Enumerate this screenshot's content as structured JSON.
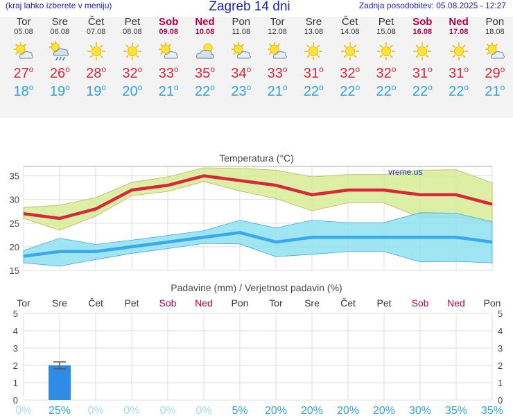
{
  "header": {
    "left_text": "(kraj lahko izberete v meniju)",
    "title": "Zagreb 14 dni",
    "right_text": "Zadnja posodobitev: 05.08.2025 - 12:27"
  },
  "degree_mark": "o",
  "days": [
    {
      "name": "Tor",
      "date": "05.08",
      "weekend": false,
      "icon": "sun-cloud-icon",
      "max": "27",
      "min": "18",
      "max_val": 27,
      "min_val": 18
    },
    {
      "name": "Sre",
      "date": "06.08",
      "weekend": false,
      "icon": "sun-cloud-rain-icon",
      "max": "26",
      "min": "19",
      "max_val": 26,
      "min_val": 19
    },
    {
      "name": "Čet",
      "date": "07.08",
      "weekend": false,
      "icon": "sun-icon",
      "max": "28",
      "min": "19",
      "max_val": 28,
      "min_val": 19
    },
    {
      "name": "Pet",
      "date": "08.08",
      "weekend": false,
      "icon": "sun-icon",
      "max": "32",
      "min": "20",
      "max_val": 32,
      "min_val": 20
    },
    {
      "name": "Sob",
      "date": "09.08",
      "weekend": true,
      "icon": "sun-cloud-icon",
      "max": "33",
      "min": "21",
      "max_val": 33,
      "min_val": 21
    },
    {
      "name": "Ned",
      "date": "10.08",
      "weekend": true,
      "icon": "cloud-sun-icon",
      "max": "35",
      "min": "22",
      "max_val": 35,
      "min_val": 22
    },
    {
      "name": "Pon",
      "date": "11.08",
      "weekend": false,
      "icon": "sun-cloud-icon",
      "max": "34",
      "min": "23",
      "max_val": 34,
      "min_val": 23
    },
    {
      "name": "Tor",
      "date": "12.08",
      "weekend": false,
      "icon": "sun-cloud-icon",
      "max": "33",
      "min": "21",
      "max_val": 33,
      "min_val": 21
    },
    {
      "name": "Sre",
      "date": "13.08",
      "weekend": false,
      "icon": "sun-icon",
      "max": "31",
      "min": "22",
      "max_val": 31,
      "min_val": 22
    },
    {
      "name": "Čet",
      "date": "14.08",
      "weekend": false,
      "icon": "sun-icon",
      "max": "32",
      "min": "22",
      "max_val": 32,
      "min_val": 22
    },
    {
      "name": "Pet",
      "date": "15.08",
      "weekend": false,
      "icon": "sun-icon",
      "max": "32",
      "min": "22",
      "max_val": 32,
      "min_val": 22
    },
    {
      "name": "Sob",
      "date": "16.08",
      "weekend": true,
      "icon": "sun-icon",
      "max": "31",
      "min": "22",
      "max_val": 31,
      "min_val": 22
    },
    {
      "name": "Ned",
      "date": "17.08",
      "weekend": true,
      "icon": "sun-icon",
      "max": "31",
      "min": "22",
      "max_val": 31,
      "min_val": 22
    },
    {
      "name": "Pon",
      "date": "18.08",
      "weekend": false,
      "icon": "sun-cloud-icon",
      "max": "29",
      "min": "21",
      "max_val": 29,
      "min_val": 21
    }
  ],
  "chart_data": [
    {
      "type": "line",
      "title": "Temperatura (°C)",
      "watermark": "vreme.us",
      "x": [
        "Tor",
        "Sre",
        "Čet",
        "Pet",
        "Sob",
        "Ned",
        "Pon",
        "Tor",
        "Sre",
        "Čet",
        "Pet",
        "Sob",
        "Ned",
        "Pon"
      ],
      "ylim": [
        15,
        37
      ],
      "yticks": [
        15,
        20,
        25,
        30,
        35
      ],
      "grid": true,
      "series": [
        {
          "values": [
            27,
            26,
            28,
            32,
            33,
            35,
            34,
            33,
            31,
            32,
            32,
            31,
            31,
            29
          ],
          "color": "#d6283a"
        },
        {
          "values": [
            18,
            19,
            19,
            20,
            21,
            22,
            23,
            21,
            22,
            22,
            22,
            22,
            22,
            21
          ],
          "color": "#3aa9ec"
        }
      ],
      "bands": [
        {
          "upper": [
            28.3,
            28.8,
            30.4,
            33.6,
            34.8,
            36.7,
            36.6,
            36.2,
            34.8,
            35.3,
            35.3,
            36.2,
            36.3,
            33.5
          ],
          "lower": [
            26.0,
            23.5,
            26.5,
            30.8,
            31.7,
            33.8,
            31.8,
            30.2,
            27.6,
            29.3,
            29.3,
            26.2,
            26.2,
            25.2
          ],
          "color": "#d6ec95"
        },
        {
          "upper": [
            19.2,
            21.8,
            20.5,
            21.4,
            22.4,
            23.4,
            25.6,
            24.0,
            25.6,
            25.1,
            25.1,
            27.2,
            27.1,
            25.3
          ],
          "lower": [
            16.6,
            15.9,
            17.3,
            18.6,
            19.6,
            20.7,
            20.6,
            17.9,
            18.4,
            19.0,
            19.0,
            16.8,
            16.9,
            16.6
          ],
          "color": "#8fe0f0"
        }
      ]
    },
    {
      "type": "bar",
      "title": "Padavine (mm) / Verjetnost padavin (%)",
      "categories": [
        "Tor",
        "Sre",
        "Čet",
        "Pet",
        "Sob",
        "Ned",
        "Pon",
        "Tor",
        "Sre",
        "Čet",
        "Pet",
        "Sob",
        "Ned",
        "Pon"
      ],
      "values": [
        0,
        2,
        0,
        0,
        0,
        0,
        0,
        0,
        0,
        0,
        0,
        0,
        0,
        0
      ],
      "error_range": [
        1.8,
        2.2
      ],
      "probability": [
        "0%",
        "25%",
        "0%",
        "0%",
        "0%",
        "0%",
        "5%",
        "20%",
        "20%",
        "20%",
        "20%",
        "30%",
        "35%",
        "35%"
      ],
      "ylim": [
        0,
        5
      ],
      "yticks": [
        "0",
        "1",
        "2",
        "3",
        "4",
        "5"
      ],
      "grid": true
    }
  ],
  "colors": {
    "header_text": "#1d22b5",
    "weekend": "#b0004a",
    "max_temp": "#d6283a",
    "min_temp": "#2aa3e0",
    "bar": "#2f8be6",
    "prob_text": "#6fd0f2"
  }
}
